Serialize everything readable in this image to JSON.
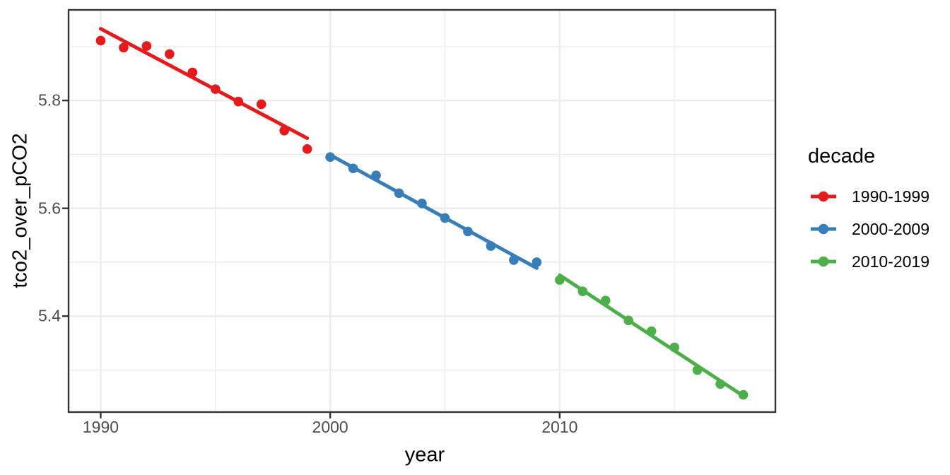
{
  "chart_data": {
    "type": "scatter",
    "title": "",
    "xlabel": "year",
    "ylabel": "tco2_over_pCO2",
    "legend_title": "decade",
    "legend_position": "right",
    "grid": "on",
    "xlim": [
      1988.6,
      2019.4
    ],
    "ylim": [
      5.222,
      5.968
    ],
    "x_ticks": [
      {
        "v": 1990,
        "label": "1990"
      },
      {
        "v": 2000,
        "label": "2000"
      },
      {
        "v": 2010,
        "label": "2010"
      }
    ],
    "y_ticks": [
      {
        "v": 5.4,
        "label": "5.4"
      },
      {
        "v": 5.6,
        "label": "5.6"
      },
      {
        "v": 5.8,
        "label": "5.8"
      }
    ],
    "x_minor_ticks": [
      1995,
      2005,
      2015
    ],
    "y_minor_ticks": [
      5.3,
      5.5,
      5.7,
      5.9
    ],
    "series": [
      {
        "name": "1990-1999",
        "color": "#E41A1C",
        "x": [
          1990,
          1991,
          1992,
          1993,
          1994,
          1995,
          1996,
          1997,
          1998,
          1999
        ],
        "y": [
          5.911,
          5.898,
          5.901,
          5.886,
          5.852,
          5.821,
          5.798,
          5.793,
          5.744,
          5.71
        ],
        "trend": {
          "x1": 1990,
          "y1": 5.933,
          "x2": 1999,
          "y2": 5.73
        }
      },
      {
        "name": "2000-2009",
        "color": "#377EB8",
        "x": [
          2000,
          2001,
          2002,
          2003,
          2004,
          2005,
          2006,
          2007,
          2008,
          2009
        ],
        "y": [
          5.695,
          5.674,
          5.661,
          5.628,
          5.609,
          5.582,
          5.557,
          5.53,
          5.504,
          5.5
        ],
        "trend": {
          "x1": 2000,
          "y1": 5.699,
          "x2": 2009,
          "y2": 5.489
        }
      },
      {
        "name": "2010-2019",
        "color": "#4DAF4A",
        "x": [
          2010,
          2011,
          2012,
          2013,
          2014,
          2015,
          2016,
          2017,
          2018
        ],
        "y": [
          5.467,
          5.446,
          5.429,
          5.392,
          5.372,
          5.342,
          5.3,
          5.274,
          5.254
        ],
        "trend": {
          "x1": 2010,
          "y1": 5.476,
          "x2": 2018,
          "y2": 5.252
        }
      }
    ],
    "colors": {
      "grid": "#EBEBEB",
      "panel_border": "#333333",
      "tick_mark": "#333333",
      "tick_text": "#4D4D4D",
      "title_text": "#000000",
      "background": "#FFFFFF"
    }
  }
}
